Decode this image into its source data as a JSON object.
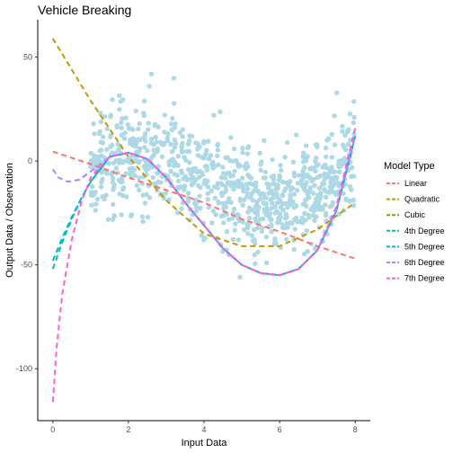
{
  "chart_data": {
    "type": "scatter",
    "title": "Vehicle Breaking",
    "xlabel": "Input Data",
    "ylabel": "Output Data / Observation",
    "xlim": [
      -0.4,
      8.4
    ],
    "ylim": [
      -125,
      68
    ],
    "x_ticks": [
      0,
      2,
      4,
      6,
      8
    ],
    "y_ticks": [
      50,
      0,
      -50,
      -100
    ],
    "grid": false,
    "legend_title": "Model Type",
    "legend_position": "right",
    "point_color": "#add8e6",
    "scatter_range": {
      "x_min": 1,
      "x_max": 8,
      "n": 900
    },
    "series": [
      {
        "name": "Linear",
        "color": "#F8766D",
        "x": [
          0,
          1,
          2,
          3,
          4,
          5,
          6,
          7,
          8
        ],
        "y": [
          4.5,
          -1.5,
          -8,
          -14,
          -20,
          -28,
          -34,
          -41,
          -47
        ]
      },
      {
        "name": "Quadratic",
        "color": "#C49A00",
        "x": [
          0,
          1,
          2,
          3,
          4,
          5,
          6,
          7,
          8
        ],
        "y": [
          59,
          29,
          2,
          -19,
          -35,
          -41,
          -41,
          -33,
          -20
        ]
      },
      {
        "name": "Cubic",
        "color": "#53B400",
        "x": [
          1,
          1.5,
          2,
          2.5,
          3,
          3.5,
          4,
          4.5,
          5,
          5.5,
          6,
          6.5,
          7,
          7.5,
          8
        ],
        "y": [
          -10,
          2,
          4,
          1,
          -8,
          -20,
          -31,
          -42,
          -50,
          -54,
          -55,
          -52,
          -43,
          -24,
          12
        ]
      },
      {
        "name": "4th Degree",
        "color": "#00C094",
        "x": [
          0,
          0.25,
          0.5,
          0.75,
          1,
          1.5,
          2,
          2.5,
          3,
          3.5,
          4,
          4.5,
          5,
          5.5,
          6,
          6.5,
          7,
          7.5,
          8
        ],
        "y": [
          -52,
          -39,
          -28,
          -18,
          -10,
          2,
          4,
          1,
          -8,
          -20,
          -31,
          -42,
          -50,
          -54,
          -55,
          -52,
          -43,
          -24,
          12
        ]
      },
      {
        "name": "5th Degree",
        "color": "#00B6EB",
        "x": [
          0,
          0.25,
          0.5,
          0.75,
          1,
          1.5,
          2,
          2.5,
          3,
          3.5,
          4,
          4.5,
          5,
          5.5,
          6,
          6.5,
          7,
          7.5,
          8
        ],
        "y": [
          -48,
          -37,
          -27,
          -18,
          -10,
          2,
          4,
          1,
          -8,
          -20,
          -31,
          -42,
          -50,
          -54,
          -55,
          -52,
          -43,
          -24,
          12
        ]
      },
      {
        "name": "6th Degree",
        "color": "#A58AFF",
        "x": [
          0,
          0.15,
          0.4,
          0.7,
          1,
          1.5,
          2,
          2.5,
          3,
          3.5,
          4,
          4.5,
          5,
          5.5,
          6,
          6.5,
          7,
          7.5,
          8
        ],
        "y": [
          -4,
          -8,
          -10,
          -9,
          -5,
          2,
          4,
          1,
          -8,
          -20,
          -31,
          -42,
          -50,
          -54,
          -55,
          -52,
          -43,
          -24,
          12
        ]
      },
      {
        "name": "7th Degree",
        "color": "#FB61D7",
        "x": [
          0,
          0.1,
          0.25,
          0.5,
          0.75,
          1,
          1.5,
          2,
          2.5,
          3,
          3.5,
          4,
          4.5,
          5,
          5.5,
          6,
          6.5,
          7,
          7.5,
          8
        ],
        "y": [
          -116,
          -90,
          -64,
          -38,
          -20,
          -8,
          2,
          4,
          1,
          -8,
          -20,
          -31,
          -42,
          -50,
          -54,
          -55,
          -52,
          -43,
          -22,
          16
        ]
      }
    ]
  }
}
